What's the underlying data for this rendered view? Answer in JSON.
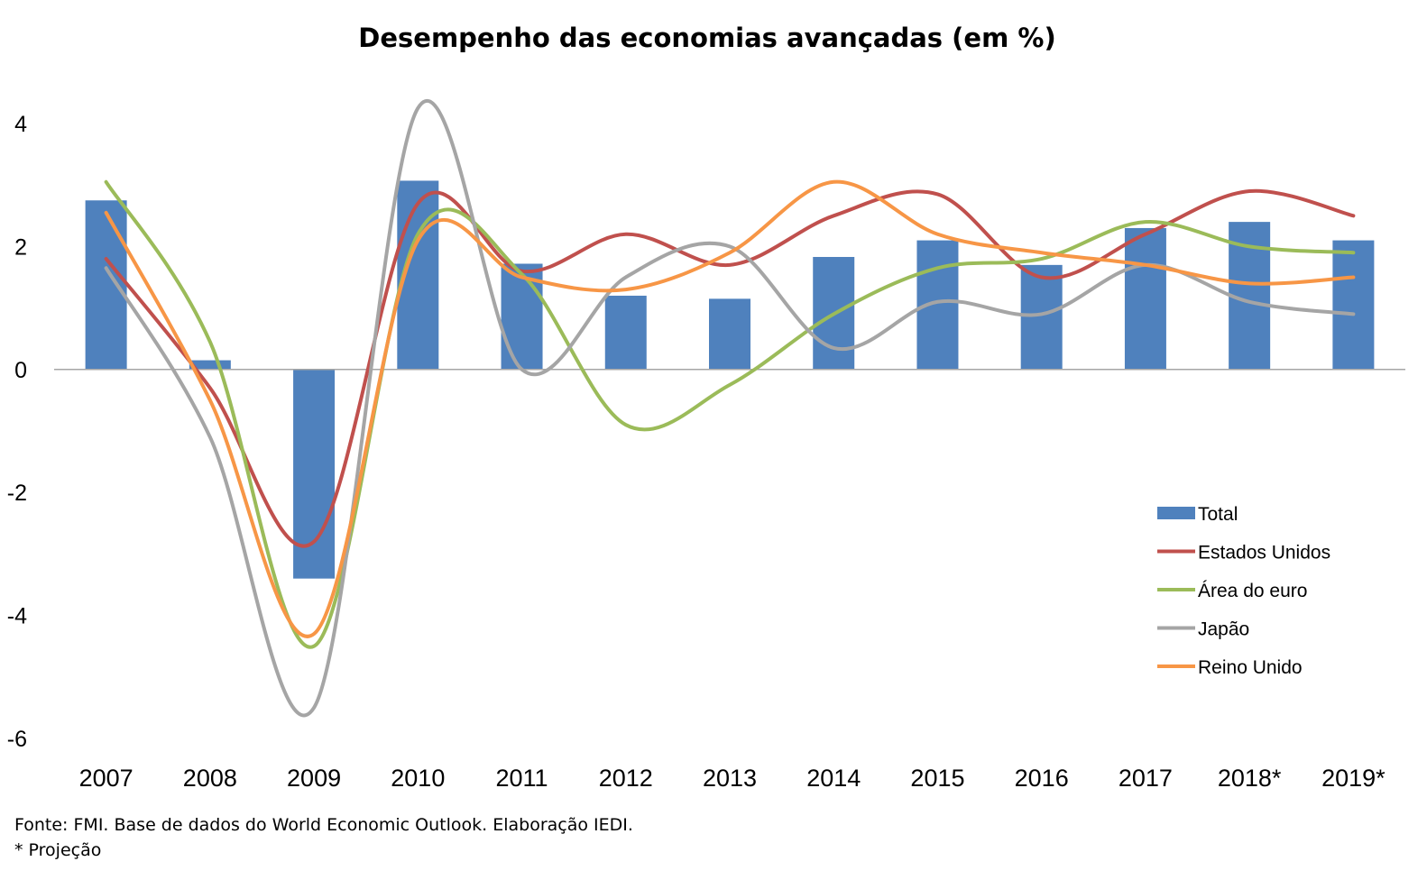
{
  "chart_data": {
    "type": "bar+line",
    "title": "Desempenho das economias avançadas (em %)",
    "xlabel": "",
    "ylabel": "",
    "categories": [
      "2007",
      "2008",
      "2009",
      "2010",
      "2011",
      "2012",
      "2013",
      "2014",
      "2015",
      "2016",
      "2017",
      "2018*",
      "2019*"
    ],
    "ylim": [
      -6,
      4
    ],
    "yticks": [
      -6,
      -4,
      -2,
      0,
      2,
      4
    ],
    "grid": false,
    "legend_position": "bottom-right",
    "series": [
      {
        "name": "Total",
        "type": "bar",
        "color": "#4f81bd",
        "values": [
          2.75,
          0.15,
          -3.4,
          3.07,
          1.72,
          1.2,
          1.15,
          1.83,
          2.1,
          1.7,
          2.3,
          2.4,
          2.1
        ]
      },
      {
        "name": "Estados Unidos",
        "type": "line",
        "color": "#c0504d",
        "values": [
          1.8,
          -0.3,
          -2.8,
          2.7,
          1.6,
          2.2,
          1.7,
          2.5,
          2.85,
          1.5,
          2.2,
          2.9,
          2.5
        ]
      },
      {
        "name": "Área do euro",
        "type": "line",
        "color": "#9bbb59",
        "values": [
          3.05,
          0.45,
          -4.5,
          2.2,
          1.55,
          -0.9,
          -0.25,
          0.9,
          1.65,
          1.8,
          2.4,
          2.0,
          1.9
        ]
      },
      {
        "name": "Japão",
        "type": "line",
        "color": "#a5a5a5",
        "values": [
          1.65,
          -1.1,
          -5.5,
          4.25,
          0.0,
          1.5,
          2.0,
          0.35,
          1.1,
          0.9,
          1.7,
          1.1,
          0.9
        ]
      },
      {
        "name": "Reino Unido",
        "type": "line",
        "color": "#f79646",
        "values": [
          2.55,
          -0.5,
          -4.3,
          2.1,
          1.5,
          1.3,
          1.9,
          3.05,
          2.2,
          1.9,
          1.7,
          1.4,
          1.5
        ]
      }
    ]
  },
  "footnotes": {
    "source": "Fonte: FMI. Base de dados do World Economic Outlook. Elaboração IEDI.",
    "projection": "* Projeção"
  }
}
